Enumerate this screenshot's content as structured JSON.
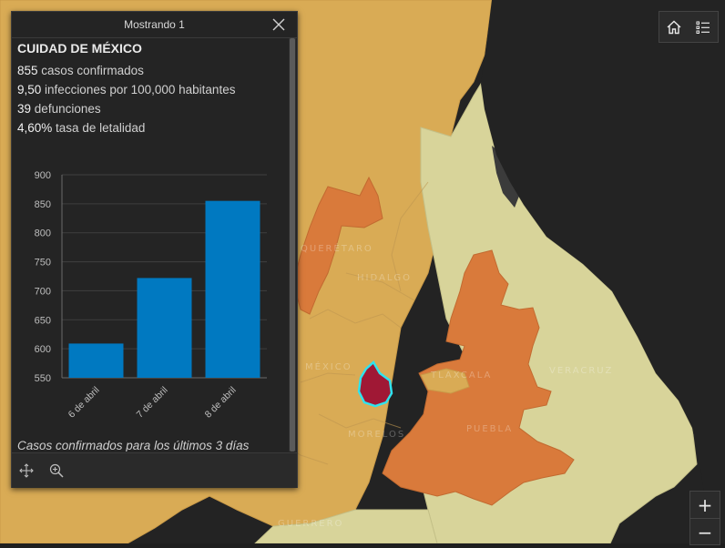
{
  "map": {
    "state_labels": [
      "Querétaro",
      "Hidalgo",
      "México",
      "Tlaxcala",
      "Veracruz",
      "Puebla",
      "Morelos",
      "Guerrero"
    ],
    "colors": {
      "water": "#232323",
      "light": "#d8d49a",
      "tan": "#d9ab55",
      "orange": "#d97a3b",
      "selected": "#a01835",
      "highlight": "#2fe3ee"
    }
  },
  "toolbar": {
    "home_icon": "home-icon",
    "legend_icon": "list-icon"
  },
  "zoom": {
    "in_label": "+",
    "out_label": "−"
  },
  "popup": {
    "title": "Mostrando 1",
    "place": "CUIDAD DE MÉXICO",
    "stats": [
      {
        "value": "855",
        "text": "casos confirmados"
      },
      {
        "value": "9,50",
        "text": "infecciones por 100,000 habitantes"
      },
      {
        "value": "39",
        "text": "defunciones"
      },
      {
        "value": "4,60%",
        "text": "tasa de letalidad"
      }
    ],
    "caption": "Casos confirmados para los últimos 3 días"
  },
  "chart_data": {
    "type": "bar",
    "categories": [
      "6 de abril",
      "7 de abril",
      "8 de abril"
    ],
    "values": [
      609,
      722,
      855
    ],
    "ylim": [
      550,
      900
    ],
    "yticks": [
      550,
      600,
      650,
      700,
      750,
      800,
      850,
      900
    ],
    "bar_color": "#0079c1",
    "grid": true,
    "legend": "none"
  }
}
